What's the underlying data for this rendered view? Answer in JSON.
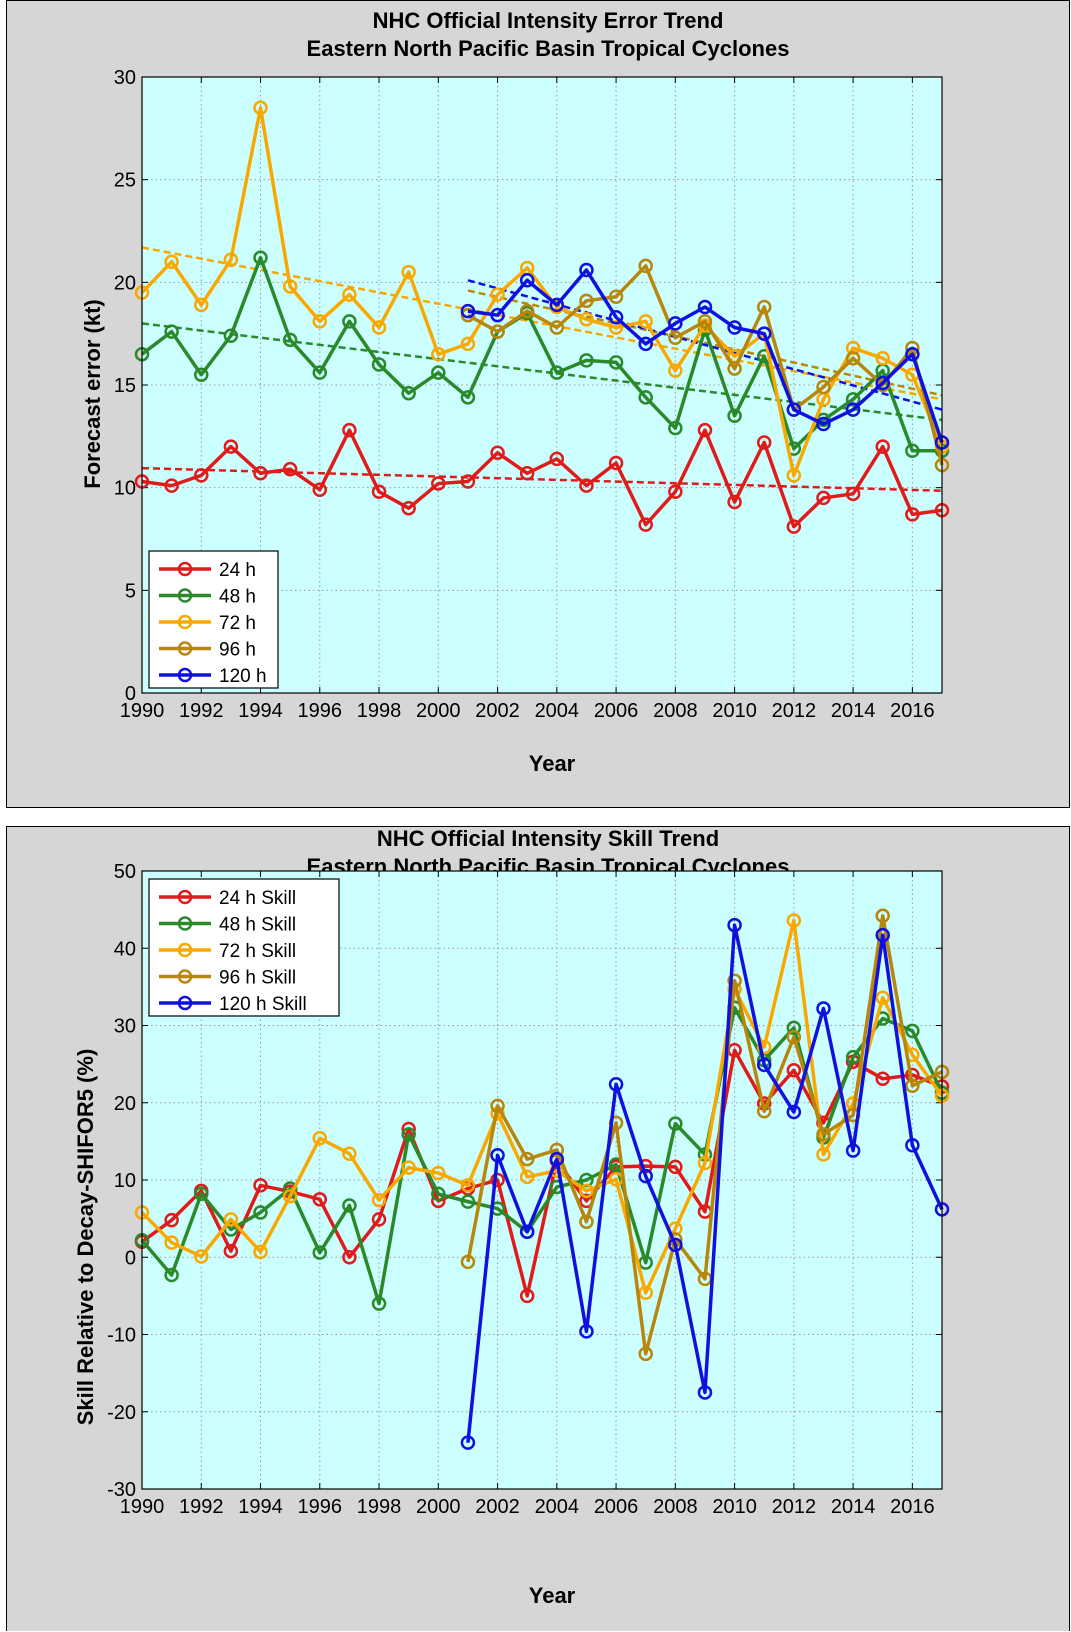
{
  "chart_data": [
    {
      "type": "line",
      "title": "NHC Official Intensity Error Trend",
      "subtitle": "Eastern North Pacific Basin Tropical Cyclones",
      "xlabel": "Year",
      "ylabel": "Forecast error (kt)",
      "xlim": [
        1990,
        2017
      ],
      "ylim": [
        0,
        30
      ],
      "xticks": [
        1990,
        1992,
        1994,
        1996,
        1998,
        2000,
        2002,
        2004,
        2006,
        2008,
        2010,
        2012,
        2014,
        2016
      ],
      "yticks": [
        0,
        5,
        10,
        15,
        20,
        25,
        30
      ],
      "grid": true,
      "legend_position": "bottom-left",
      "background": "#ccffff",
      "series": [
        {
          "name": "24 h",
          "color": "#e11a1a",
          "start": 1990,
          "values": [
            10.3,
            10.1,
            10.6,
            12.0,
            10.7,
            10.9,
            9.9,
            12.8,
            9.8,
            9.0,
            10.2,
            10.3,
            11.7,
            10.7,
            11.4,
            10.1,
            11.2,
            8.2,
            9.8,
            12.8,
            9.3,
            12.2,
            8.1,
            9.5,
            9.7,
            12.0,
            8.7,
            8.9
          ],
          "trend": [
            [
              1990,
              10.95
            ],
            [
              2017,
              9.85
            ]
          ]
        },
        {
          "name": "48 h",
          "color": "#2a8a2a",
          "start": 1990,
          "values": [
            16.5,
            17.6,
            15.5,
            17.4,
            21.2,
            17.2,
            15.6,
            18.1,
            16.0,
            14.6,
            15.6,
            14.4,
            17.6,
            18.5,
            15.6,
            16.2,
            16.1,
            14.4,
            12.9,
            17.7,
            13.5,
            16.4,
            11.9,
            13.3,
            14.3,
            15.7,
            11.8,
            11.8
          ],
          "trend": [
            [
              1990,
              18.0
            ],
            [
              2017,
              13.3
            ]
          ]
        },
        {
          "name": "72 h",
          "color": "#f8a800",
          "start": 1990,
          "values": [
            19.5,
            21.0,
            18.9,
            21.1,
            28.5,
            19.8,
            18.1,
            19.4,
            17.8,
            20.5,
            16.5,
            17.0,
            19.4,
            20.7,
            18.8,
            18.2,
            17.8,
            18.1,
            15.7,
            17.9,
            16.4,
            17.5,
            10.6,
            14.3,
            16.8,
            16.3,
            15.5,
            12.0
          ],
          "trend": [
            [
              1990,
              21.7
            ],
            [
              2017,
              14.3
            ]
          ]
        },
        {
          "name": "96 h",
          "color": "#b8860b",
          "start": 2001,
          "values": [
            18.4,
            17.6,
            18.6,
            17.8,
            19.1,
            19.3,
            20.8,
            17.3,
            18.1,
            15.8,
            18.8,
            13.8,
            14.9,
            16.3,
            15.0,
            16.8,
            11.1
          ],
          "trend": [
            [
              2001,
              19.6
            ],
            [
              2017,
              14.5
            ]
          ]
        },
        {
          "name": "120 h",
          "color": "#1010e0",
          "start": 2001,
          "values": [
            18.6,
            18.4,
            20.1,
            18.9,
            20.6,
            18.3,
            17.0,
            18.0,
            18.8,
            17.8,
            17.5,
            13.8,
            13.1,
            13.8,
            15.1,
            16.5,
            12.2
          ],
          "trend": [
            [
              2001,
              20.1
            ],
            [
              2017,
              13.8
            ]
          ]
        }
      ]
    },
    {
      "type": "line",
      "title": "NHC Official Intensity Skill Trend",
      "subtitle": "Eastern North Pacific Basin Tropical Cyclones",
      "xlabel": "Year",
      "ylabel": "Skill Relative to Decay-SHIFOR5 (%)",
      "xlim": [
        1990,
        2017
      ],
      "ylim": [
        -30,
        50
      ],
      "xticks": [
        1990,
        1992,
        1994,
        1996,
        1998,
        2000,
        2002,
        2004,
        2006,
        2008,
        2010,
        2012,
        2014,
        2016
      ],
      "yticks": [
        -30,
        -20,
        -10,
        0,
        10,
        20,
        30,
        40,
        50
      ],
      "grid": true,
      "legend_position": "top-left",
      "background": "#ccffff",
      "series": [
        {
          "name": "24 h Skill",
          "color": "#e11a1a",
          "start": 1990,
          "values": [
            2.0,
            4.8,
            8.6,
            0.8,
            9.3,
            8.5,
            7.5,
            0.0,
            4.9,
            16.6,
            7.3,
            8.9,
            10.0,
            -5.0,
            12.5,
            7.3,
            11.7,
            11.8,
            11.7,
            5.9,
            26.8,
            19.9,
            24.2,
            17.4,
            25.3,
            23.1,
            23.6,
            22.1
          ]
        },
        {
          "name": "48 h Skill",
          "color": "#2a8a2a",
          "start": 1990,
          "values": [
            2.2,
            -2.3,
            8.2,
            3.6,
            5.8,
            8.9,
            0.6,
            6.7,
            -6.0,
            15.9,
            8.2,
            7.2,
            6.3,
            3.3,
            9.1,
            10.0,
            12.0,
            -0.7,
            17.3,
            13.3,
            32.3,
            25.5,
            29.7,
            15.5,
            25.9,
            30.9,
            29.3,
            21.3
          ]
        },
        {
          "name": "72 h Skill",
          "color": "#f8a800",
          "start": 1990,
          "values": [
            5.8,
            1.9,
            0.1,
            4.9,
            0.7,
            7.9,
            15.4,
            13.4,
            7.4,
            11.6,
            10.9,
            9.3,
            18.6,
            10.4,
            11.2,
            8.6,
            10.1,
            -4.6,
            3.7,
            12.2,
            34.7,
            27.2,
            43.6,
            13.3,
            19.9,
            33.6,
            26.2,
            20.9
          ]
        },
        {
          "name": "96 h Skill",
          "color": "#b8860b",
          "start": 2001,
          "values": [
            -0.6,
            19.6,
            12.7,
            13.9,
            4.6,
            17.4,
            -12.5,
            2.3,
            -2.8,
            35.8,
            18.9,
            28.5,
            15.9,
            18.4,
            44.2,
            22.2,
            24.0
          ]
        },
        {
          "name": "120 h Skill",
          "color": "#1010e0",
          "start": 2001,
          "values": [
            -24.0,
            13.2,
            3.3,
            12.7,
            -9.6,
            22.4,
            10.5,
            1.6,
            -17.5,
            43.0,
            24.9,
            18.8,
            32.2,
            13.8,
            41.7,
            14.5,
            6.2
          ]
        }
      ]
    }
  ]
}
